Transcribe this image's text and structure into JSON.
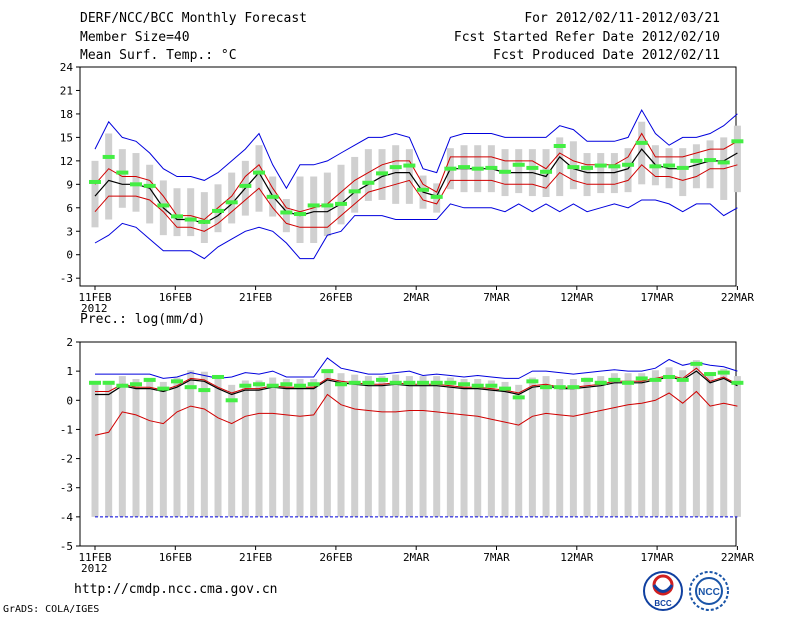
{
  "header": {
    "title": "DERF/NCC/BCC Monthly Forecast",
    "member_size": "Member Size=40",
    "variable": "Mean Surf. Temp.: °C",
    "forecast_period": "For 2012/02/11-2012/03/21",
    "start_ref": "Fcst Started Refer Date 2012/02/10",
    "produced": "Fcst Produced Date 2012/02/11"
  },
  "footer": {
    "url": "http://cmdp.ncc.cma.gov.cn",
    "grads": "GrADS: COLA/IGES",
    "logo_left": "BCC",
    "logo_right": "NCC"
  },
  "colors": {
    "box": "#d0d0d0",
    "obs": "#44ee44",
    "mean": "#000000",
    "spread": "#d00000",
    "extreme": "#0000dd"
  },
  "chart_data": [
    {
      "type": "line",
      "title": "Mean Surf. Temp.: °C",
      "ylim": [
        -4,
        24
      ],
      "yticks": [
        -3,
        0,
        3,
        6,
        9,
        12,
        15,
        18,
        21,
        24
      ],
      "x_tick_days": [
        0,
        5,
        10,
        15,
        20,
        25,
        30,
        35,
        40
      ],
      "x_tick_labels": [
        "11FEB",
        "16FEB",
        "21FEB",
        "26FEB",
        "2MAR",
        "7MAR",
        "12MAR",
        "17MAR",
        "22MAR"
      ],
      "x_year_label": "2012",
      "days": 40,
      "series": [
        {
          "name": "mean",
          "values": [
            7.5,
            9.5,
            9,
            9,
            8.5,
            6,
            4.5,
            4.5,
            4,
            5,
            6.5,
            8.5,
            10.5,
            7.5,
            5.5,
            5,
            5.5,
            5.5,
            6.5,
            8,
            9,
            10,
            10.5,
            10.5,
            8,
            7.5,
            11,
            11,
            11,
            11,
            10.5,
            10.5,
            10.5,
            10,
            12.5,
            11,
            10.5,
            10.5,
            10.5,
            11,
            13.5,
            11.5,
            11,
            11,
            11.5,
            12,
            12,
            13
          ]
        },
        {
          "name": "spread_upper",
          "values": [
            9,
            11,
            10,
            10,
            9.5,
            7.5,
            5,
            5,
            4.5,
            6,
            7.5,
            10,
            11.5,
            8.5,
            6,
            5.5,
            6,
            6.5,
            8,
            9.5,
            10.5,
            11.5,
            12,
            12,
            9,
            8,
            12.5,
            12.5,
            12.5,
            12.5,
            12,
            12,
            12,
            11,
            13,
            12,
            11.5,
            11.5,
            11.5,
            12.5,
            15.5,
            12.5,
            12.5,
            12.5,
            13,
            13.5,
            13.5,
            14.5
          ]
        },
        {
          "name": "spread_lower",
          "values": [
            5.5,
            7.5,
            7.5,
            7.5,
            7,
            5.5,
            3.5,
            3.5,
            3,
            4,
            5.5,
            7,
            8.5,
            6,
            4,
            3.5,
            3.5,
            3.5,
            5,
            6.5,
            8,
            8.5,
            9,
            9.5,
            7,
            6.5,
            9.5,
            9.5,
            9.5,
            9.5,
            9,
            9,
            9,
            8.5,
            10.5,
            9.5,
            9,
            9,
            9,
            9.5,
            11.5,
            10,
            10,
            9.5,
            10,
            11,
            11,
            11.5
          ]
        },
        {
          "name": "max_envelope",
          "values": [
            13.5,
            17,
            15,
            14.5,
            13,
            11,
            10,
            10,
            9.5,
            10.5,
            12,
            13.5,
            15.5,
            11.5,
            8.5,
            11.5,
            11.5,
            12,
            13,
            14,
            15,
            15,
            15.5,
            15,
            11,
            10.5,
            15,
            15.5,
            15.5,
            15.5,
            15,
            15,
            15,
            15,
            16.5,
            16,
            14.5,
            14.5,
            14.5,
            15,
            18.5,
            15.5,
            14,
            15,
            15,
            15.5,
            16.5,
            18
          ]
        },
        {
          "name": "min_envelope",
          "values": [
            1.5,
            2.5,
            4,
            3.5,
            2,
            0.5,
            0.5,
            0.5,
            -0.5,
            1,
            2,
            3,
            3.5,
            3,
            1.5,
            -0.5,
            -0.5,
            2.5,
            3,
            5,
            5,
            5,
            4.5,
            4.5,
            4.5,
            4.5,
            6.5,
            6,
            6,
            6,
            5.5,
            6.5,
            5.5,
            6.5,
            5.5,
            6.5,
            5.5,
            6,
            6.5,
            6,
            7,
            7,
            6.5,
            5.5,
            6.5,
            6.5,
            5,
            6
          ]
        },
        {
          "name": "observed",
          "values": [
            9.3,
            12.5,
            10.5,
            9,
            8.8,
            6.3,
            4.9,
            4.5,
            4.2,
            5.6,
            6.7,
            8.8,
            10.5,
            7.4,
            5.4,
            5.2,
            6.3,
            6.3,
            6.5,
            8.1,
            9.2,
            10.4,
            11.2,
            11.4,
            8.3,
            7.4,
            11,
            11.2,
            11,
            11.1,
            10.6,
            11.5,
            11.1,
            10.6,
            13.9,
            11.2,
            11.1,
            11.4,
            11.3,
            11.5,
            14.3,
            11.3,
            11.4,
            11.1,
            12,
            12.1,
            11.8,
            14.5
          ]
        }
      ]
    },
    {
      "type": "line",
      "title": "Prec.: log(mm/d)",
      "ylim": [
        -5,
        2
      ],
      "yticks": [
        -5,
        -4,
        -3,
        -2,
        -1,
        0,
        1,
        2
      ],
      "x_tick_days": [
        0,
        5,
        10,
        15,
        20,
        25,
        30,
        35,
        40
      ],
      "x_tick_labels": [
        "11FEB",
        "16FEB",
        "21FEB",
        "26FEB",
        "2MAR",
        "7MAR",
        "12MAR",
        "17MAR",
        "22MAR"
      ],
      "x_year_label": "2012",
      "days": 40,
      "series": [
        {
          "name": "mean",
          "values": [
            0.2,
            0.2,
            0.5,
            0.4,
            0.4,
            0.3,
            0.45,
            0.7,
            0.65,
            0.4,
            0.2,
            0.35,
            0.35,
            0.45,
            0.4,
            0.4,
            0.4,
            0.7,
            0.6,
            0.55,
            0.5,
            0.5,
            0.55,
            0.5,
            0.5,
            0.5,
            0.45,
            0.4,
            0.4,
            0.35,
            0.3,
            0.2,
            0.45,
            0.5,
            0.4,
            0.4,
            0.45,
            0.5,
            0.6,
            0.6,
            0.6,
            0.7,
            0.8,
            0.7,
            1.0,
            0.6,
            0.75,
            0.5
          ]
        },
        {
          "name": "spread_upper",
          "values": [
            0.3,
            0.3,
            0.55,
            0.45,
            0.45,
            0.35,
            0.5,
            0.75,
            0.7,
            0.45,
            0.25,
            0.4,
            0.4,
            0.5,
            0.45,
            0.45,
            0.45,
            0.75,
            0.65,
            0.6,
            0.55,
            0.55,
            0.6,
            0.55,
            0.55,
            0.55,
            0.5,
            0.45,
            0.45,
            0.4,
            0.35,
            0.25,
            0.5,
            0.55,
            0.45,
            0.45,
            0.5,
            0.55,
            0.65,
            0.65,
            0.65,
            0.75,
            0.85,
            0.75,
            1.1,
            0.65,
            0.8,
            0.55
          ]
        },
        {
          "name": "spread_lower",
          "values": [
            -1.2,
            -1.1,
            -0.4,
            -0.5,
            -0.7,
            -0.8,
            -0.4,
            -0.2,
            -0.3,
            -0.6,
            -0.8,
            -0.55,
            -0.45,
            -0.45,
            -0.5,
            -0.55,
            -0.5,
            0.2,
            -0.15,
            -0.3,
            -0.35,
            -0.4,
            -0.4,
            -0.35,
            -0.35,
            -0.4,
            -0.45,
            -0.5,
            -0.55,
            -0.65,
            -0.75,
            -0.85,
            -0.55,
            -0.45,
            -0.5,
            -0.55,
            -0.45,
            -0.35,
            -0.25,
            -0.15,
            -0.1,
            0.0,
            0.25,
            -0.1,
            0.3,
            -0.2,
            -0.1,
            -0.2
          ]
        },
        {
          "name": "max_envelope",
          "values": [
            0.9,
            0.9,
            0.9,
            0.9,
            0.9,
            0.75,
            0.8,
            0.95,
            0.85,
            0.75,
            0.8,
            0.95,
            0.9,
            1.0,
            0.8,
            0.8,
            0.8,
            1.45,
            1.1,
            1.0,
            0.9,
            0.9,
            0.95,
            1.0,
            0.85,
            0.9,
            0.85,
            0.8,
            0.85,
            0.8,
            0.75,
            0.75,
            1.0,
            1.0,
            0.95,
            0.9,
            0.95,
            1.0,
            1.05,
            1.0,
            1.0,
            1.1,
            1.4,
            1.2,
            1.3,
            1.2,
            1.15,
            1.0
          ]
        },
        {
          "name": "min_envelope",
          "values": [
            -4,
            -4,
            -4,
            -4,
            -4,
            -4,
            -4,
            -4,
            -4,
            -4,
            -4,
            -4,
            -4,
            -4,
            -4,
            -4,
            -4,
            -4,
            -4,
            -4,
            -4,
            -4,
            -4,
            -4,
            -4,
            -4,
            -4,
            -4,
            -4,
            -4,
            -4,
            -4,
            -4,
            -4,
            -4,
            -4,
            -4,
            -4,
            -4,
            -4,
            -4,
            -4,
            -4,
            -4,
            -4,
            -4,
            -4,
            -4
          ]
        },
        {
          "name": "observed",
          "values": [
            0.6,
            0.6,
            0.5,
            0.55,
            0.7,
            0.4,
            0.65,
            0.45,
            0.35,
            0.8,
            0.0,
            0.5,
            0.55,
            0.5,
            0.55,
            0.5,
            0.55,
            1.0,
            0.55,
            0.6,
            0.6,
            0.7,
            0.6,
            0.6,
            0.6,
            0.6,
            0.6,
            0.55,
            0.5,
            0.5,
            0.4,
            0.1,
            0.65,
            0.45,
            0.45,
            0.45,
            0.7,
            0.6,
            0.7,
            0.6,
            0.75,
            0.7,
            0.8,
            0.7,
            1.25,
            0.9,
            0.95,
            0.6
          ]
        }
      ]
    }
  ]
}
